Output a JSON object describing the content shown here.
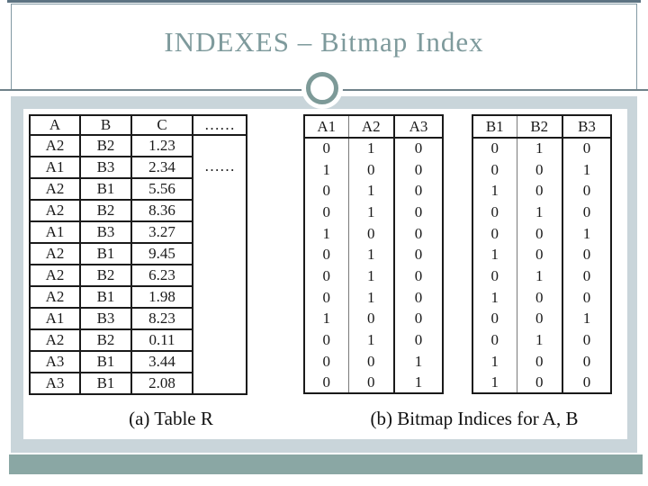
{
  "slide": {
    "title": "INDEXES – Bitmap Index",
    "caption_a": "(a) Table R",
    "caption_b": "(b) Bitmap Indices for A, B"
  },
  "colors": {
    "accent_teal": "#7d9a98",
    "band_light_gray": "#c9d5da",
    "bottom_strip_teal": "#8aa7a4",
    "title_text": "#7e9a9c",
    "table_border": "#1a1a1a"
  },
  "table_r": {
    "headers": [
      "A",
      "B",
      "C",
      "……"
    ],
    "ellipsis_cell": "……",
    "rows": [
      [
        "A2",
        "B2",
        "1.23"
      ],
      [
        "A1",
        "B3",
        "2.34"
      ],
      [
        "A2",
        "B1",
        "5.56"
      ],
      [
        "A2",
        "B2",
        "8.36"
      ],
      [
        "A1",
        "B3",
        "3.27"
      ],
      [
        "A2",
        "B1",
        "9.45"
      ],
      [
        "A2",
        "B2",
        "6.23"
      ],
      [
        "A2",
        "B1",
        "1.98"
      ],
      [
        "A1",
        "B3",
        "8.23"
      ],
      [
        "A2",
        "B2",
        "0.11"
      ],
      [
        "A3",
        "B1",
        "3.44"
      ],
      [
        "A3",
        "B1",
        "2.08"
      ]
    ]
  },
  "bitmap_a": {
    "headers": [
      "A1",
      "A2",
      "A3"
    ],
    "rows": [
      [
        "0",
        "1",
        "0"
      ],
      [
        "1",
        "0",
        "0"
      ],
      [
        "0",
        "1",
        "0"
      ],
      [
        "0",
        "1",
        "0"
      ],
      [
        "1",
        "0",
        "0"
      ],
      [
        "0",
        "1",
        "0"
      ],
      [
        "0",
        "1",
        "0"
      ],
      [
        "0",
        "1",
        "0"
      ],
      [
        "1",
        "0",
        "0"
      ],
      [
        "0",
        "1",
        "0"
      ],
      [
        "0",
        "0",
        "1"
      ],
      [
        "0",
        "0",
        "1"
      ]
    ]
  },
  "bitmap_b": {
    "headers": [
      "B1",
      "B2",
      "B3"
    ],
    "rows": [
      [
        "0",
        "1",
        "0"
      ],
      [
        "0",
        "0",
        "1"
      ],
      [
        "1",
        "0",
        "0"
      ],
      [
        "0",
        "1",
        "0"
      ],
      [
        "0",
        "0",
        "1"
      ],
      [
        "1",
        "0",
        "0"
      ],
      [
        "0",
        "1",
        "0"
      ],
      [
        "1",
        "0",
        "0"
      ],
      [
        "0",
        "0",
        "1"
      ],
      [
        "0",
        "1",
        "0"
      ],
      [
        "1",
        "0",
        "0"
      ],
      [
        "1",
        "0",
        "0"
      ]
    ]
  }
}
